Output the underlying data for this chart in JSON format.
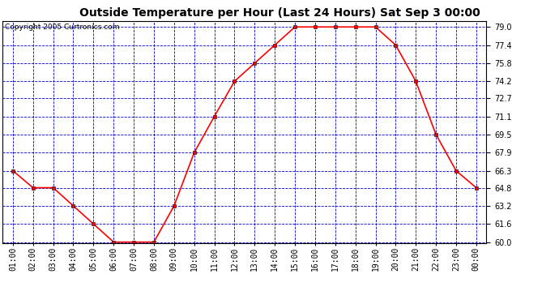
{
  "title": "Outside Temperature per Hour (Last 24 Hours) Sat Sep 3 00:00",
  "copyright": "Copyright 2005 Curtronics.com",
  "hours": [
    "01:00",
    "02:00",
    "03:00",
    "04:00",
    "05:00",
    "06:00",
    "07:00",
    "08:00",
    "09:00",
    "10:00",
    "11:00",
    "12:00",
    "13:00",
    "14:00",
    "15:00",
    "16:00",
    "17:00",
    "18:00",
    "19:00",
    "20:00",
    "21:00",
    "22:00",
    "23:00",
    "00:00"
  ],
  "temps": [
    66.3,
    64.8,
    64.8,
    63.2,
    61.6,
    60.0,
    60.0,
    60.0,
    63.2,
    67.9,
    71.1,
    74.2,
    75.8,
    77.4,
    79.0,
    79.0,
    79.0,
    79.0,
    79.0,
    77.4,
    74.2,
    69.5,
    66.3,
    64.8
  ],
  "ylim_min": 60.0,
  "ylim_max": 79.0,
  "yticks": [
    60.0,
    61.6,
    63.2,
    64.8,
    66.3,
    67.9,
    69.5,
    71.1,
    72.7,
    74.2,
    75.8,
    77.4,
    79.0
  ],
  "line_color": "red",
  "marker": "s",
  "marker_size": 3,
  "grid_color": "#0000cc",
  "bg_color": "white",
  "title_fontsize": 10,
  "tick_fontsize": 7,
  "copyright_fontsize": 6.5,
  "ytick_fontsize": 7
}
